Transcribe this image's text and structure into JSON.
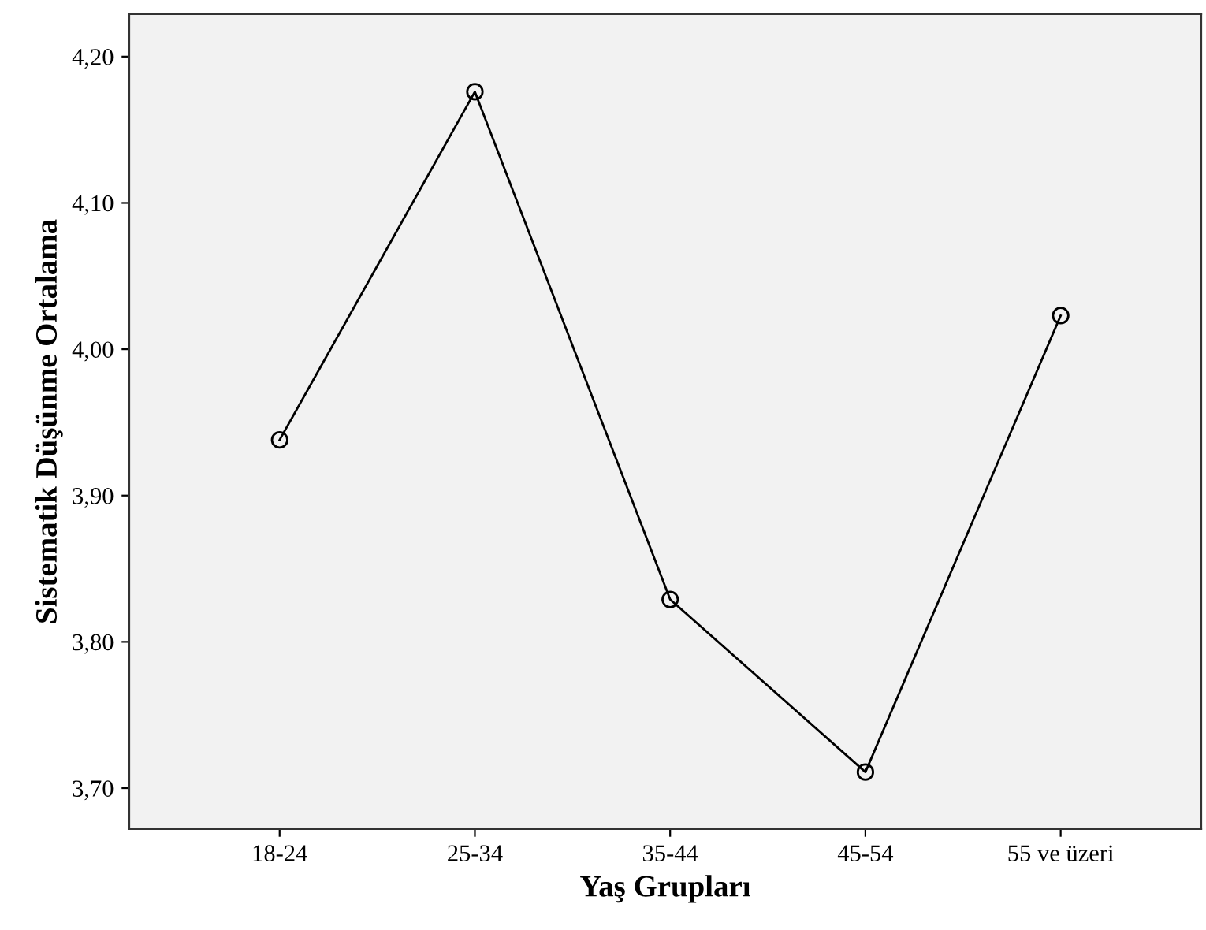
{
  "chart_data": {
    "type": "line",
    "xlabel": "Yaş Grupları",
    "ylabel": "Sistematik Düşünme Ortalama",
    "categories": [
      "18-24",
      "25-34",
      "35-44",
      "45-54",
      "55 ve üzeri"
    ],
    "series": [
      {
        "color": "#000000",
        "values": [
          3.938,
          4.176,
          3.829,
          3.711,
          4.023
        ]
      }
    ],
    "ylim": [
      3.672,
      4.229
    ],
    "yticks": [
      {
        "value": 3.7,
        "label": "3,70"
      },
      {
        "value": 3.8,
        "label": "3,80"
      },
      {
        "value": 3.9,
        "label": "3,90"
      },
      {
        "value": 4.0,
        "label": "4,00"
      },
      {
        "value": 4.1,
        "label": "4,10"
      },
      {
        "value": 4.2,
        "label": "4,20"
      }
    ],
    "marker": "circle",
    "line_style": "solid",
    "grid": false,
    "legend": false
  }
}
